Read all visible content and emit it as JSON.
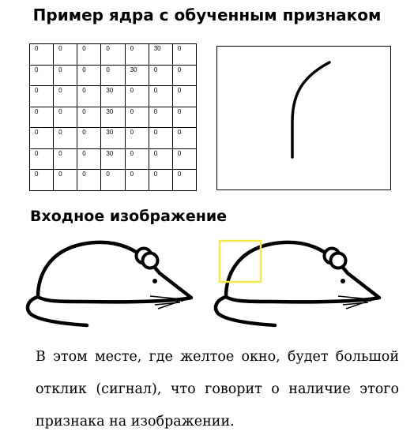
{
  "title": "Пример ядра с обученным признаком",
  "kernel": {
    "rows": [
      [
        "0",
        "0",
        "0",
        "0",
        "0",
        "30",
        "0"
      ],
      [
        "0",
        "0",
        "0",
        "0",
        "30",
        "0",
        "0"
      ],
      [
        "0",
        "0",
        "0",
        "30",
        "0",
        "0",
        "0"
      ],
      [
        "0",
        "0",
        "0",
        "30",
        "0",
        "0",
        "0"
      ],
      [
        "0",
        "0",
        "0",
        "30",
        "0",
        "0",
        "0"
      ],
      [
        "0",
        "0",
        "0",
        "30",
        "0",
        "0",
        "0"
      ],
      [
        "0",
        "0",
        "0",
        "0",
        "0",
        "0",
        "0"
      ]
    ]
  },
  "section_heading": "Входное изображение",
  "highlight_color": "#f2e94e",
  "caption": "В этом месте, где желтое окно, будет большой отклик (сигнал), что говорит о наличие этого признака на изображении."
}
